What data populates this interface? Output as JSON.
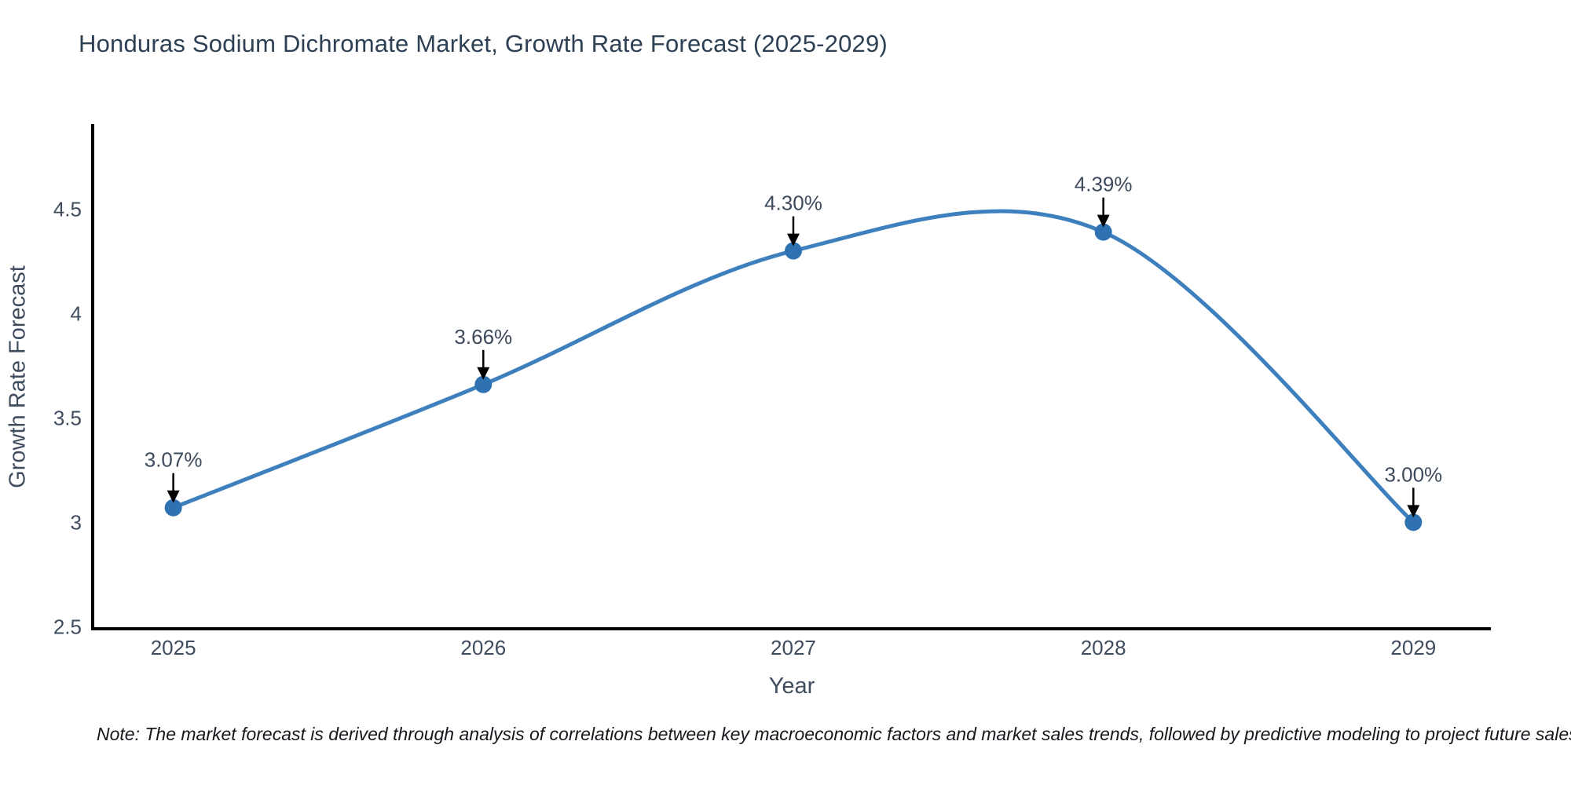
{
  "chart_data": {
    "type": "line",
    "title": "Honduras Sodium Dichromate Market, Growth Rate Forecast (2025-2029)",
    "xlabel": "Year",
    "ylabel": "Growth Rate Forecast",
    "x": [
      2025,
      2026,
      2027,
      2028,
      2029
    ],
    "y": [
      3.07,
      3.66,
      4.3,
      4.39,
      3.0
    ],
    "point_labels": [
      "3.07%",
      "3.66%",
      "4.30%",
      "4.39%",
      "3.00%"
    ],
    "line_shape": "spline",
    "xticks": [
      "2025",
      "2026",
      "2027",
      "2028",
      "2029"
    ],
    "yticks": [
      "2.5",
      "3",
      "3.5",
      "4",
      "4.5"
    ],
    "ytick_values": [
      2.5,
      3,
      3.5,
      4,
      4.5
    ],
    "xlim": [
      2024.74,
      2029.25
    ],
    "ylim": [
      2.49,
      4.9
    ],
    "grid": false,
    "legend": "none",
    "colors": {
      "line": "#3e80bd",
      "marker": "#2e72b2",
      "axis": "#000000",
      "tick_text": "#3e4c5e",
      "annotation_text": "#3d4a5c",
      "annotation_arrow": "#000000",
      "title_text": "#2e4154",
      "background": "#ffffff"
    },
    "note": "Note: The market forecast is derived through analysis of correlations between key macroeconomic factors and market sales trends, followed by predictive modeling to project future sales"
  }
}
